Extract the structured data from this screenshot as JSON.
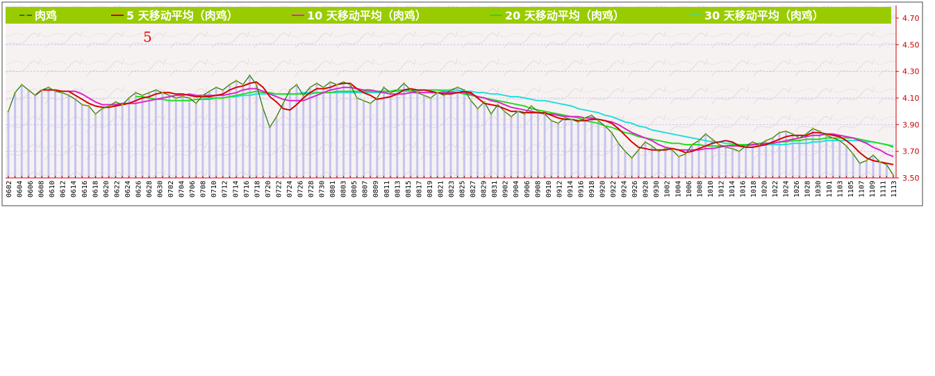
{
  "legend": {
    "items": [
      {
        "label": "肉鸡",
        "color": "#1e7a1e"
      },
      {
        "label": "5 天移动平均（肉鸡）",
        "color": "#d40000"
      },
      {
        "label": "10 天移动平均（肉鸡）",
        "color": "#dd22cc"
      },
      {
        "label": "20 天移动平均（肉鸡）",
        "color": "#22dd22"
      },
      {
        "label": "30 天移动平均（肉鸡）",
        "color": "#22dddd"
      }
    ],
    "background": "#99cc00"
  },
  "annotation": "5",
  "chart_data": {
    "type": "line",
    "ylim": [
      3.5,
      4.7
    ],
    "yticks": [
      "3.50",
      "3.70",
      "3.90",
      "4.10",
      "4.30",
      "4.50",
      "4.70"
    ],
    "xticks": [
      "0602",
      "0604",
      "0606",
      "0608",
      "0610",
      "0612",
      "0614",
      "0616",
      "0618",
      "0620",
      "0622",
      "0624",
      "0626",
      "0628",
      "0630",
      "0702",
      "0704",
      "0706",
      "0708",
      "0710",
      "0712",
      "0714",
      "0716",
      "0718",
      "0720",
      "0722",
      "0724",
      "0726",
      "0728",
      "0730",
      "0801",
      "0803",
      "0805",
      "0807",
      "0809",
      "0811",
      "0813",
      "0815",
      "0817",
      "0819",
      "0821",
      "0823",
      "0825",
      "0827",
      "0829",
      "0831",
      "0902",
      "0904",
      "0906",
      "0908",
      "0910",
      "0912",
      "0914",
      "0916",
      "0918",
      "0920",
      "0922",
      "0924",
      "0926",
      "0928",
      "0930",
      "1002",
      "1004",
      "1006",
      "1008",
      "1010",
      "1012",
      "1014",
      "1016",
      "1018",
      "1020",
      "1022",
      "1024",
      "1026",
      "1028",
      "1030",
      "1101",
      "1103",
      "1105",
      "1107",
      "1109",
      "1111",
      "1113"
    ],
    "axis_color": "#cc0000",
    "bar_color": "#b8b8f0",
    "series": [
      {
        "name": "肉鸡",
        "color": "#1e7a1e",
        "values": [
          4.0,
          4.14,
          4.2,
          4.16,
          4.12,
          4.16,
          4.18,
          4.15,
          4.14,
          4.12,
          4.09,
          4.05,
          4.04,
          3.98,
          4.02,
          4.04,
          4.07,
          4.05,
          4.1,
          4.14,
          4.12,
          4.14,
          4.16,
          4.14,
          4.12,
          4.1,
          4.11,
          4.1,
          4.06,
          4.12,
          4.15,
          4.18,
          4.16,
          4.2,
          4.23,
          4.2,
          4.27,
          4.2,
          4.02,
          3.88,
          3.96,
          4.06,
          4.16,
          4.2,
          4.12,
          4.18,
          4.21,
          4.18,
          4.22,
          4.2,
          4.22,
          4.2,
          4.1,
          4.08,
          4.06,
          4.1,
          4.18,
          4.14,
          4.16,
          4.21,
          4.16,
          4.14,
          4.12,
          4.1,
          4.14,
          4.12,
          4.16,
          4.18,
          4.16,
          4.08,
          4.02,
          4.07,
          3.98,
          4.05,
          4.0,
          3.96,
          4.0,
          3.98,
          4.04,
          4.0,
          3.98,
          3.93,
          3.91,
          3.95,
          3.94,
          3.92,
          3.95,
          3.97,
          3.93,
          3.89,
          3.84,
          3.76,
          3.7,
          3.65,
          3.71,
          3.77,
          3.74,
          3.7,
          3.72,
          3.71,
          3.66,
          3.68,
          3.75,
          3.78,
          3.83,
          3.79,
          3.75,
          3.73,
          3.72,
          3.7,
          3.74,
          3.77,
          3.75,
          3.78,
          3.8,
          3.84,
          3.85,
          3.83,
          3.8,
          3.83,
          3.87,
          3.85,
          3.82,
          3.8,
          3.78,
          3.74,
          3.68,
          3.61,
          3.63,
          3.67,
          3.62,
          3.6,
          3.52
        ]
      },
      {
        "name": "5 天移动平均（肉鸡）",
        "color": "#d40000",
        "values": [
          null,
          null,
          null,
          null,
          4.12,
          4.16,
          4.16,
          4.16,
          4.15,
          4.15,
          4.12,
          4.09,
          4.06,
          4.04,
          4.03,
          4.03,
          4.04,
          4.05,
          4.06,
          4.08,
          4.1,
          4.11,
          4.13,
          4.14,
          4.14,
          4.13,
          4.13,
          4.12,
          4.11,
          4.11,
          4.11,
          4.12,
          4.13,
          4.16,
          4.18,
          4.19,
          4.21,
          4.22,
          4.18,
          4.11,
          4.07,
          4.02,
          4.01,
          4.05,
          4.1,
          4.14,
          4.17,
          4.17,
          4.18,
          4.2,
          4.21,
          4.21,
          4.17,
          4.14,
          4.12,
          4.09,
          4.1,
          4.11,
          4.13,
          4.16,
          4.17,
          4.16,
          4.16,
          4.15,
          4.14,
          4.13,
          4.13,
          4.14,
          4.15,
          4.14,
          4.1,
          4.06,
          4.05,
          4.04,
          4.02,
          4.0,
          4.0,
          3.99,
          3.99,
          3.99,
          3.99,
          3.97,
          3.95,
          3.94,
          3.94,
          3.93,
          3.93,
          3.94,
          3.94,
          3.93,
          3.91,
          3.87,
          3.82,
          3.77,
          3.73,
          3.72,
          3.71,
          3.71,
          3.71,
          3.72,
          3.71,
          3.69,
          3.7,
          3.72,
          3.74,
          3.76,
          3.77,
          3.78,
          3.77,
          3.74,
          3.73,
          3.73,
          3.74,
          3.75,
          3.77,
          3.79,
          3.81,
          3.82,
          3.82,
          3.82,
          3.84,
          3.84,
          3.83,
          3.82,
          3.81,
          3.78,
          3.74,
          3.69,
          3.65,
          3.63,
          3.62,
          3.61,
          3.6
        ]
      },
      {
        "name": "10 天移动平均（肉鸡）",
        "color": "#dd22cc",
        "values": [
          null,
          null,
          null,
          null,
          null,
          null,
          null,
          null,
          null,
          4.15,
          4.15,
          4.13,
          4.1,
          4.07,
          4.05,
          4.05,
          4.05,
          4.06,
          4.06,
          4.06,
          4.07,
          4.08,
          4.09,
          4.1,
          4.11,
          4.12,
          4.12,
          4.13,
          4.12,
          4.12,
          4.12,
          4.12,
          4.12,
          4.13,
          4.14,
          4.16,
          4.17,
          4.17,
          4.15,
          4.13,
          4.11,
          4.09,
          4.08,
          4.08,
          4.08,
          4.1,
          4.12,
          4.14,
          4.16,
          4.17,
          4.18,
          4.18,
          4.17,
          4.16,
          4.16,
          4.15,
          4.14,
          4.13,
          4.13,
          4.13,
          4.14,
          4.14,
          4.14,
          4.14,
          4.14,
          4.14,
          4.14,
          4.14,
          4.14,
          4.13,
          4.11,
          4.1,
          4.08,
          4.07,
          4.05,
          4.03,
          4.02,
          4.01,
          4.0,
          3.99,
          3.98,
          3.98,
          3.97,
          3.96,
          3.96,
          3.96,
          3.95,
          3.95,
          3.94,
          3.93,
          3.92,
          3.9,
          3.87,
          3.84,
          3.82,
          3.8,
          3.78,
          3.75,
          3.73,
          3.72,
          3.71,
          3.71,
          3.71,
          3.71,
          3.72,
          3.72,
          3.73,
          3.74,
          3.74,
          3.74,
          3.74,
          3.75,
          3.75,
          3.76,
          3.76,
          3.77,
          3.78,
          3.79,
          3.8,
          3.81,
          3.82,
          3.82,
          3.83,
          3.83,
          3.82,
          3.81,
          3.8,
          3.78,
          3.76,
          3.73,
          3.71,
          3.68,
          3.66
        ]
      },
      {
        "name": "20 天移动平均（肉鸡）",
        "color": "#22dd22",
        "values": [
          null,
          null,
          null,
          null,
          null,
          null,
          null,
          null,
          null,
          null,
          null,
          null,
          null,
          null,
          null,
          null,
          null,
          null,
          null,
          4.11,
          4.11,
          4.1,
          4.09,
          4.09,
          4.08,
          4.08,
          4.08,
          4.08,
          4.09,
          4.09,
          4.09,
          4.1,
          4.1,
          4.11,
          4.12,
          4.13,
          4.14,
          4.15,
          4.14,
          4.14,
          4.13,
          4.13,
          4.13,
          4.13,
          4.13,
          4.13,
          4.14,
          4.14,
          4.14,
          4.15,
          4.15,
          4.15,
          4.15,
          4.15,
          4.15,
          4.15,
          4.15,
          4.15,
          4.16,
          4.16,
          4.16,
          4.16,
          4.16,
          4.16,
          4.16,
          4.15,
          4.15,
          4.14,
          4.13,
          4.12,
          4.11,
          4.1,
          4.09,
          4.08,
          4.07,
          4.06,
          4.05,
          4.04,
          4.02,
          4.01,
          4.0,
          3.99,
          3.98,
          3.97,
          3.96,
          3.95,
          3.93,
          3.92,
          3.91,
          3.89,
          3.88,
          3.86,
          3.84,
          3.83,
          3.81,
          3.8,
          3.79,
          3.78,
          3.77,
          3.76,
          3.76,
          3.75,
          3.75,
          3.75,
          3.74,
          3.74,
          3.74,
          3.74,
          3.75,
          3.75,
          3.75,
          3.75,
          3.76,
          3.76,
          3.76,
          3.77,
          3.77,
          3.78,
          3.78,
          3.79,
          3.79,
          3.79,
          3.8,
          3.8,
          3.8,
          3.8,
          3.8,
          3.79,
          3.78,
          3.77,
          3.76,
          3.75,
          3.73
        ]
      },
      {
        "name": "30 天移动平均（肉鸡）",
        "color": "#22dddd",
        "values": [
          null,
          null,
          null,
          null,
          null,
          null,
          null,
          null,
          null,
          null,
          null,
          null,
          null,
          null,
          null,
          null,
          null,
          null,
          null,
          null,
          null,
          null,
          null,
          null,
          null,
          null,
          null,
          null,
          null,
          4.09,
          4.1,
          4.1,
          4.1,
          4.11,
          4.11,
          4.12,
          4.12,
          4.13,
          4.13,
          4.13,
          4.13,
          4.13,
          4.13,
          4.13,
          4.14,
          4.14,
          4.14,
          4.14,
          4.14,
          4.14,
          4.14,
          4.14,
          4.14,
          4.14,
          4.14,
          4.14,
          4.14,
          4.15,
          4.15,
          4.15,
          4.15,
          4.15,
          4.16,
          4.16,
          4.16,
          4.16,
          4.16,
          4.16,
          4.15,
          4.15,
          4.14,
          4.14,
          4.13,
          4.13,
          4.12,
          4.11,
          4.11,
          4.1,
          4.09,
          4.08,
          4.08,
          4.07,
          4.06,
          4.05,
          4.04,
          4.02,
          4.01,
          4.0,
          3.99,
          3.97,
          3.96,
          3.94,
          3.92,
          3.91,
          3.89,
          3.88,
          3.86,
          3.85,
          3.84,
          3.83,
          3.82,
          3.81,
          3.8,
          3.79,
          3.78,
          3.77,
          3.77,
          3.76,
          3.76,
          3.75,
          3.75,
          3.75,
          3.75,
          3.75,
          3.75,
          3.75,
          3.75,
          3.76,
          3.76,
          3.76,
          3.77,
          3.77,
          3.78,
          3.78,
          3.78,
          3.78,
          3.78,
          3.78,
          3.77,
          3.77,
          3.76,
          3.75,
          3.74
        ]
      }
    ]
  }
}
